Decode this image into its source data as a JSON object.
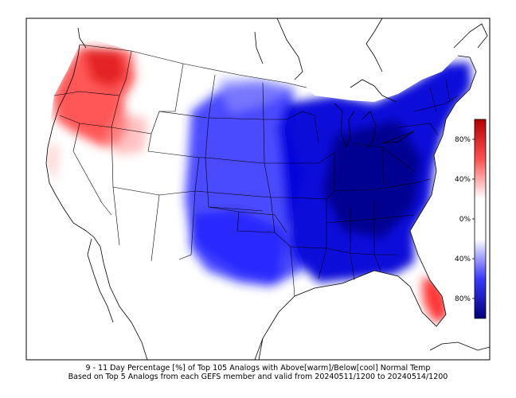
{
  "title_line1": "9 - 11 Day Percentage [%] of Top 105 Analogs with Above[warm]/Below[cool] Normal Temp",
  "title_line2": "Based on Top 5 Analogs from each GEFS member and valid from 20240511/1200 to 20240514/1200",
  "colorbar": {
    "ticks": [
      "80%",
      "40%",
      "0%",
      "40%",
      "80%"
    ],
    "warm_color": "#b40000",
    "cool_color": "#00007a"
  },
  "regions": [
    {
      "name": "pacific-northwest",
      "kind": "warm",
      "intensity": 0.75
    },
    {
      "name": "interior-west",
      "kind": "warm",
      "intensity": 0.25
    },
    {
      "name": "south-florida",
      "kind": "warm",
      "intensity": 0.8
    },
    {
      "name": "plains",
      "kind": "cool",
      "intensity": 0.6
    },
    {
      "name": "east",
      "kind": "cool",
      "intensity": 0.95
    },
    {
      "name": "gulf-coast",
      "kind": "cool",
      "intensity": 0.5
    }
  ]
}
